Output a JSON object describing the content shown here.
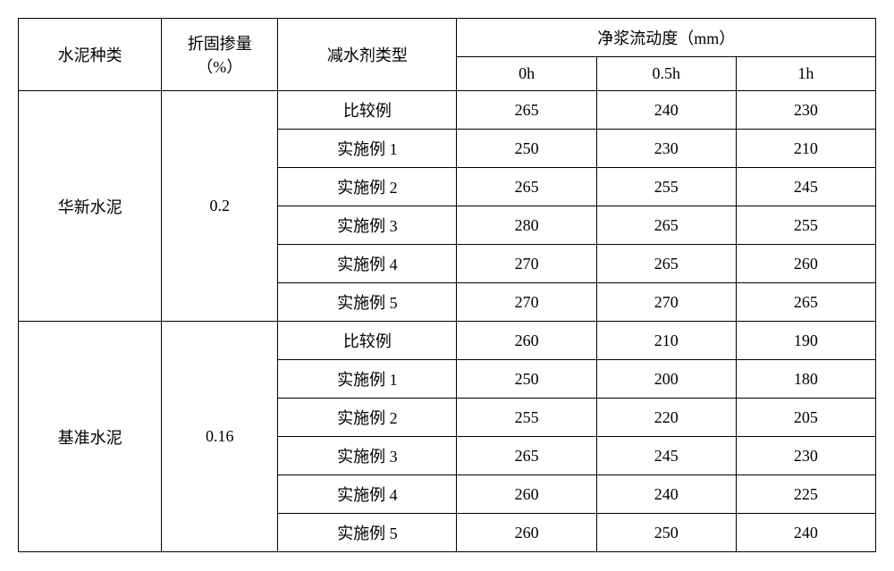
{
  "headers": {
    "cement_type": "水泥种类",
    "dosage": "折固掺量\n（%）",
    "reducer_type": "减水剂类型",
    "flow_header": "净浆流动度（mm）",
    "time_0h": "0h",
    "time_05h": "0.5h",
    "time_1h": "1h"
  },
  "groups": [
    {
      "cement": "华新水泥",
      "dosage": "0.2",
      "rows": [
        {
          "type": "比较例",
          "v0": "265",
          "v05": "240",
          "v1": "230"
        },
        {
          "type": "实施例 1",
          "v0": "250",
          "v05": "230",
          "v1": "210"
        },
        {
          "type": "实施例 2",
          "v0": "265",
          "v05": "255",
          "v1": "245"
        },
        {
          "type": "实施例 3",
          "v0": "280",
          "v05": "265",
          "v1": "255"
        },
        {
          "type": "实施例 4",
          "v0": "270",
          "v05": "265",
          "v1": "260"
        },
        {
          "type": "实施例 5",
          "v0": "270",
          "v05": "270",
          "v1": "265"
        }
      ]
    },
    {
      "cement": "基准水泥",
      "dosage": "0.16",
      "rows": [
        {
          "type": "比较例",
          "v0": "260",
          "v05": "210",
          "v1": "190"
        },
        {
          "type": "实施例 1",
          "v0": "250",
          "v05": "200",
          "v1": "180"
        },
        {
          "type": "实施例 2",
          "v0": "255",
          "v05": "220",
          "v1": "205"
        },
        {
          "type": "实施例 3",
          "v0": "265",
          "v05": "245",
          "v1": "230"
        },
        {
          "type": "实施例 4",
          "v0": "260",
          "v05": "240",
          "v1": "225"
        },
        {
          "type": "实施例 5",
          "v0": "260",
          "v05": "250",
          "v1": "240"
        }
      ]
    }
  ]
}
